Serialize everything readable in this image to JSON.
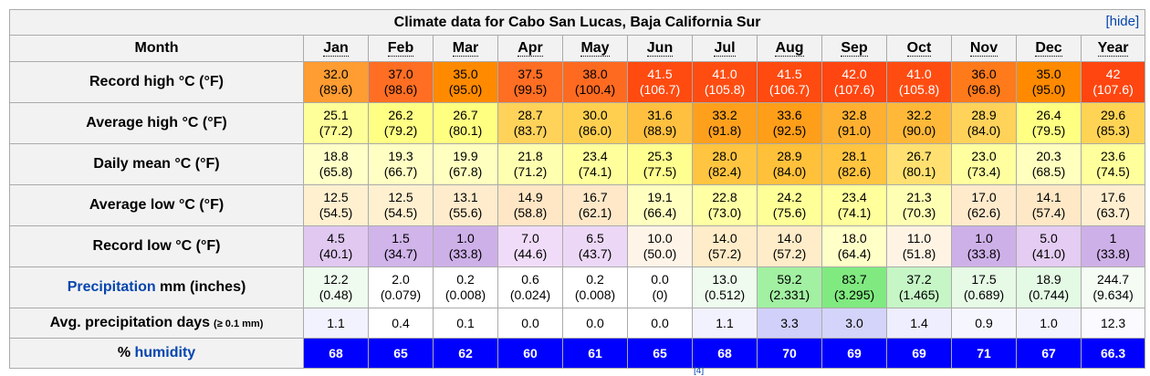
{
  "title": "Climate data for Cabo San Lucas, Baja California Sur",
  "hide_label": "[hide]",
  "header": {
    "month_label": "Month",
    "months": [
      "Jan",
      "Feb",
      "Mar",
      "Apr",
      "May",
      "Jun",
      "Jul",
      "Aug",
      "Sep",
      "Oct",
      "Nov",
      "Dec",
      "Year"
    ]
  },
  "rows": [
    {
      "label": "Record high °C (°F)",
      "cells": [
        {
          "v": "32.0",
          "s": "(89.6)",
          "bg": "#ff9c32"
        },
        {
          "v": "37.0",
          "s": "(98.6)",
          "bg": "#ff6e23"
        },
        {
          "v": "35.0",
          "s": "(95.0)",
          "bg": "#ff8a00"
        },
        {
          "v": "37.5",
          "s": "(99.5)",
          "bg": "#ff6e23"
        },
        {
          "v": "38.0",
          "s": "(100.4)",
          "bg": "#ff6a21"
        },
        {
          "v": "41.5",
          "s": "(106.7)",
          "bg": "#ff4a10",
          "fg": "#ffffff"
        },
        {
          "v": "41.0",
          "s": "(105.8)",
          "bg": "#ff4d12",
          "fg": "#ffffff"
        },
        {
          "v": "41.5",
          "s": "(106.7)",
          "bg": "#ff4a10",
          "fg": "#ffffff"
        },
        {
          "v": "42.0",
          "s": "(107.6)",
          "bg": "#ff4610",
          "fg": "#ffffff"
        },
        {
          "v": "41.0",
          "s": "(105.8)",
          "bg": "#ff4d12",
          "fg": "#ffffff"
        },
        {
          "v": "36.0",
          "s": "(96.8)",
          "bg": "#ff7a1a"
        },
        {
          "v": "35.0",
          "s": "(95.0)",
          "bg": "#ff8a00"
        },
        {
          "v": "42",
          "s": "(107.6)",
          "bg": "#ff4610",
          "fg": "#ffffff"
        }
      ]
    },
    {
      "label": "Average high °C (°F)",
      "cells": [
        {
          "v": "25.1",
          "s": "(77.2)",
          "bg": "#ffff99"
        },
        {
          "v": "26.2",
          "s": "(79.2)",
          "bg": "#ffff84"
        },
        {
          "v": "26.7",
          "s": "(80.1)",
          "bg": "#ffff80"
        },
        {
          "v": "28.7",
          "s": "(83.7)",
          "bg": "#ffd25a"
        },
        {
          "v": "30.0",
          "s": "(86.0)",
          "bg": "#ffd050"
        },
        {
          "v": "31.6",
          "s": "(88.9)",
          "bg": "#ffc040"
        },
        {
          "v": "33.2",
          "s": "(91.8)",
          "bg": "#ffa01c"
        },
        {
          "v": "33.6",
          "s": "(92.5)",
          "bg": "#ff9e18"
        },
        {
          "v": "32.8",
          "s": "(91.0)",
          "bg": "#ffb030"
        },
        {
          "v": "32.2",
          "s": "(90.0)",
          "bg": "#ffb838"
        },
        {
          "v": "28.9",
          "s": "(84.0)",
          "bg": "#ffd25a"
        },
        {
          "v": "26.4",
          "s": "(79.5)",
          "bg": "#ffff82"
        },
        {
          "v": "29.6",
          "s": "(85.3)",
          "bg": "#ffd454"
        }
      ]
    },
    {
      "label": "Daily mean °C (°F)",
      "cells": [
        {
          "v": "18.8",
          "s": "(65.8)",
          "bg": "#ffffc8"
        },
        {
          "v": "19.3",
          "s": "(66.7)",
          "bg": "#ffffc4"
        },
        {
          "v": "19.9",
          "s": "(67.8)",
          "bg": "#ffffc0"
        },
        {
          "v": "21.8",
          "s": "(71.2)",
          "bg": "#ffffb0"
        },
        {
          "v": "23.4",
          "s": "(74.1)",
          "bg": "#ffff9c"
        },
        {
          "v": "25.3",
          "s": "(77.5)",
          "bg": "#ffff90"
        },
        {
          "v": "28.0",
          "s": "(82.4)",
          "bg": "#ffc440"
        },
        {
          "v": "28.9",
          "s": "(84.0)",
          "bg": "#ffc03a"
        },
        {
          "v": "28.1",
          "s": "(82.6)",
          "bg": "#ffc440"
        },
        {
          "v": "26.7",
          "s": "(80.1)",
          "bg": "#ffe070"
        },
        {
          "v": "23.0",
          "s": "(73.4)",
          "bg": "#ffffa0"
        },
        {
          "v": "20.3",
          "s": "(68.5)",
          "bg": "#ffffbe"
        },
        {
          "v": "23.6",
          "s": "(74.5)",
          "bg": "#ffff9c"
        }
      ]
    },
    {
      "label": "Average low °C (°F)",
      "cells": [
        {
          "v": "12.5",
          "s": "(54.5)",
          "bg": "#fff0d0"
        },
        {
          "v": "12.5",
          "s": "(54.5)",
          "bg": "#fff0d0"
        },
        {
          "v": "13.1",
          "s": "(55.6)",
          "bg": "#ffeccc"
        },
        {
          "v": "14.9",
          "s": "(58.8)",
          "bg": "#ffe6c4"
        },
        {
          "v": "16.7",
          "s": "(62.1)",
          "bg": "#ffe8c8"
        },
        {
          "v": "19.1",
          "s": "(66.4)",
          "bg": "#ffffc0"
        },
        {
          "v": "22.8",
          "s": "(73.0)",
          "bg": "#ffffa4"
        },
        {
          "v": "24.2",
          "s": "(75.6)",
          "bg": "#ffff98"
        },
        {
          "v": "23.4",
          "s": "(74.1)",
          "bg": "#ffff9c"
        },
        {
          "v": "21.3",
          "s": "(70.3)",
          "bg": "#ffffb4"
        },
        {
          "v": "17.0",
          "s": "(62.6)",
          "bg": "#ffeacc"
        },
        {
          "v": "14.1",
          "s": "(57.4)",
          "bg": "#ffe8c6"
        },
        {
          "v": "17.6",
          "s": "(63.7)",
          "bg": "#ffeed0"
        }
      ]
    },
    {
      "label": "Record low °C (°F)",
      "cells": [
        {
          "v": "4.5",
          "s": "(40.1)",
          "bg": "#e0c8f0"
        },
        {
          "v": "1.5",
          "s": "(34.7)",
          "bg": "#d0b4ea"
        },
        {
          "v": "1.0",
          "s": "(33.8)",
          "bg": "#ceb0e8"
        },
        {
          "v": "7.0",
          "s": "(44.6)",
          "bg": "#f0dcf8"
        },
        {
          "v": "6.5",
          "s": "(43.7)",
          "bg": "#ecd8f6"
        },
        {
          "v": "10.0",
          "s": "(50.0)",
          "bg": "#fff4e8"
        },
        {
          "v": "14.0",
          "s": "(57.2)",
          "bg": "#ffecc8"
        },
        {
          "v": "14.0",
          "s": "(57.2)",
          "bg": "#ffecc8"
        },
        {
          "v": "18.0",
          "s": "(64.4)",
          "bg": "#ffffc8"
        },
        {
          "v": "11.0",
          "s": "(51.8)",
          "bg": "#fff4e4"
        },
        {
          "v": "1.0",
          "s": "(33.8)",
          "bg": "#ceb0e8"
        },
        {
          "v": "5.0",
          "s": "(41.0)",
          "bg": "#e4ccf2"
        },
        {
          "v": "1",
          "s": "(33.8)",
          "bg": "#ceb0e8"
        }
      ]
    },
    {
      "label_link": "Precipitation",
      "label_rest": " mm (inches)",
      "cells": [
        {
          "v": "12.2",
          "s": "(0.48)",
          "bg": "#eefbee"
        },
        {
          "v": "2.0",
          "s": "(0.079)",
          "bg": "#ffffff"
        },
        {
          "v": "0.2",
          "s": "(0.008)",
          "bg": "#ffffff"
        },
        {
          "v": "0.6",
          "s": "(0.024)",
          "bg": "#ffffff"
        },
        {
          "v": "0.2",
          "s": "(0.008)",
          "bg": "#ffffff"
        },
        {
          "v": "0.0",
          "s": "(0)",
          "bg": "#ffffff"
        },
        {
          "v": "13.0",
          "s": "(0.512)",
          "bg": "#eefbee"
        },
        {
          "v": "59.2",
          "s": "(2.331)",
          "bg": "#a2f0a2"
        },
        {
          "v": "83.7",
          "s": "(3.295)",
          "bg": "#80ea80"
        },
        {
          "v": "37.2",
          "s": "(1.465)",
          "bg": "#c6f6c6"
        },
        {
          "v": "17.5",
          "s": "(0.689)",
          "bg": "#e6fae6"
        },
        {
          "v": "18.9",
          "s": "(0.744)",
          "bg": "#e4fae4"
        },
        {
          "v": "244.7",
          "s": "(9.634)",
          "bg": "#f4fcf4"
        }
      ]
    }
  ],
  "precip_days": {
    "label": "Avg. precipitation days",
    "note": "(≥ 0.1 mm)",
    "cells": [
      {
        "v": "1.1",
        "bg": "#f2f2ff"
      },
      {
        "v": "0.4",
        "bg": "#ffffff"
      },
      {
        "v": "0.1",
        "bg": "#ffffff"
      },
      {
        "v": "0.0",
        "bg": "#ffffff"
      },
      {
        "v": "0.0",
        "bg": "#ffffff"
      },
      {
        "v": "0.0",
        "bg": "#ffffff"
      },
      {
        "v": "1.1",
        "bg": "#f2f2ff"
      },
      {
        "v": "3.3",
        "bg": "#d0d0fa"
      },
      {
        "v": "3.0",
        "bg": "#d4d4fa"
      },
      {
        "v": "1.4",
        "bg": "#eeeeff"
      },
      {
        "v": "0.9",
        "bg": "#f6f6ff"
      },
      {
        "v": "1.0",
        "bg": "#f4f4ff"
      },
      {
        "v": "12.3",
        "bg": "#fafaff"
      }
    ]
  },
  "humidity": {
    "label_prefix": "% ",
    "label_link": "humidity",
    "bg": "#0000ff",
    "values": [
      "68",
      "65",
      "62",
      "60",
      "61",
      "65",
      "68",
      "70",
      "69",
      "69",
      "71",
      "67",
      "66.3"
    ]
  },
  "footer_ref": "[4]"
}
